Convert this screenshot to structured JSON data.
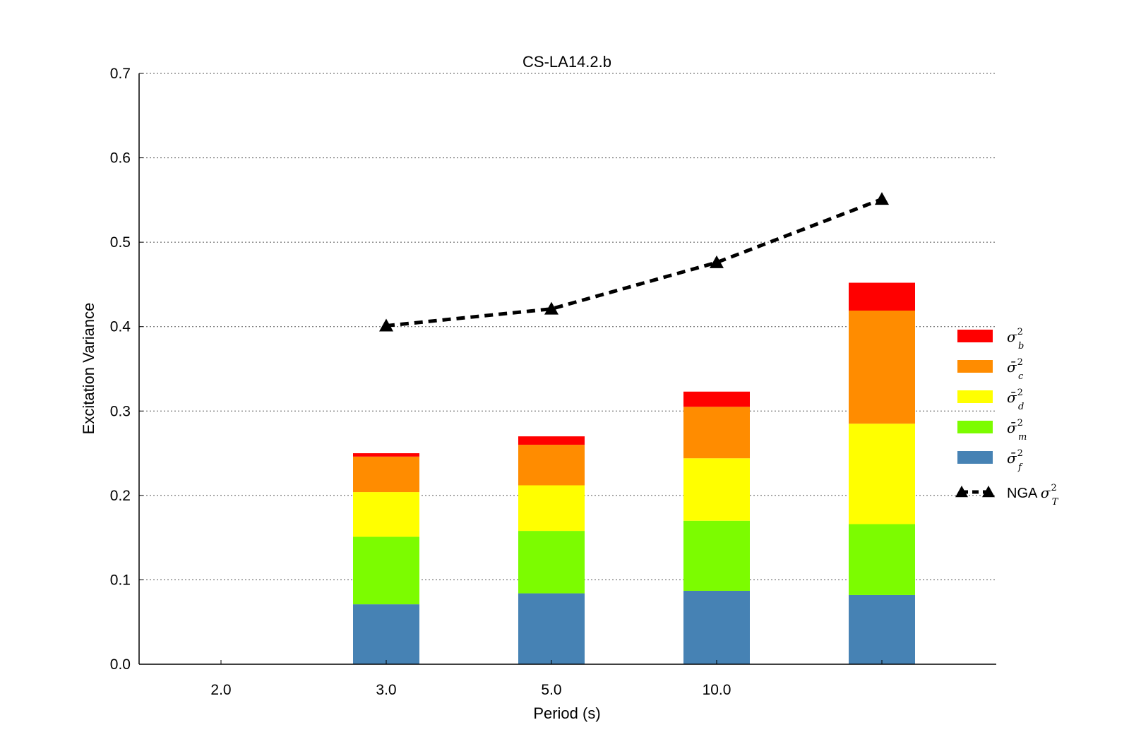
{
  "chart_data": {
    "type": "bar",
    "title": "CS-LA14.2.b",
    "xlabel": "Period (s)",
    "ylabel": "Excitation Variance",
    "ylim": [
      0,
      0.7
    ],
    "yticks": [
      "0.0",
      "0.1",
      "0.2",
      "0.3",
      "0.4",
      "0.5",
      "0.6",
      "0.7"
    ],
    "categories": [
      "2.0",
      "3.0",
      "5.0",
      "10.0",
      ""
    ],
    "grid": "y dotted",
    "stacked": true,
    "series": [
      {
        "name": "σ̄f",
        "base": "σ̄",
        "sub": "f",
        "sup": "2",
        "color": "#4682b4",
        "values": [
          null,
          0.071,
          0.084,
          0.087,
          0.082
        ]
      },
      {
        "name": "σ̄m",
        "base": "σ̄",
        "sub": "m",
        "sup": "2",
        "color": "#7cfc00",
        "values": [
          null,
          0.08,
          0.074,
          0.083,
          0.084
        ]
      },
      {
        "name": "σ̄d",
        "base": "σ̄",
        "sub": "d",
        "sup": "2",
        "color": "#ffff00",
        "values": [
          null,
          0.053,
          0.054,
          0.074,
          0.119
        ]
      },
      {
        "name": "σ̄c",
        "base": "σ̄",
        "sub": "c",
        "sup": "2",
        "color": "#ff8c00",
        "values": [
          null,
          0.042,
          0.048,
          0.061,
          0.134
        ]
      },
      {
        "name": "σb",
        "base": "σ",
        "sub": "b",
        "sup": "2",
        "color": "#ff0000",
        "values": [
          null,
          0.004,
          0.01,
          0.018,
          0.033
        ]
      }
    ],
    "line": {
      "name": "NGA σT",
      "prefix": "NGA ",
      "base": "σ",
      "sub": "T",
      "sup": "2",
      "color": "#000000",
      "style": "dashed",
      "marker": "triangle",
      "values": [
        null,
        0.401,
        0.421,
        0.476,
        0.551
      ]
    },
    "legend": "right"
  }
}
